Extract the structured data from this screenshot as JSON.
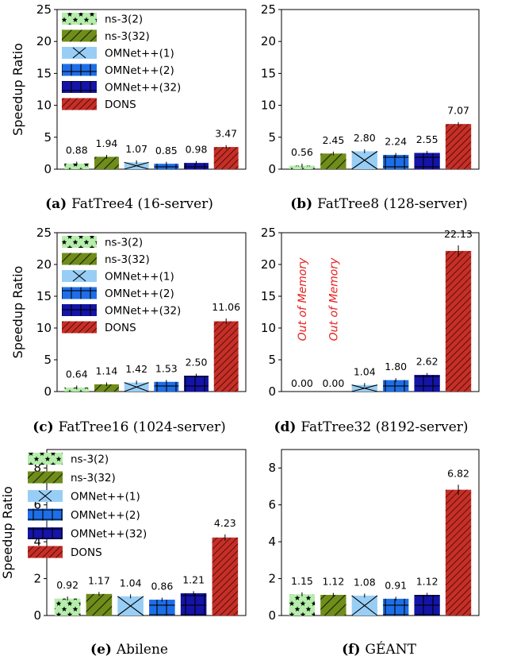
{
  "legend": [
    "ns-3(2)",
    "ns-3(32)",
    "OMNet++(1)",
    "OMNet++(2)",
    "OMNet++(32)",
    "DONS"
  ],
  "colors": {
    "ns3_2": "#b5eeab",
    "ns3_32": "#6f8d1a",
    "omnet_1": "#98cef5",
    "omnet_2": "#1e6ee8",
    "omnet_32": "#1414a8",
    "dons": "#c62f27"
  },
  "chart_data": [
    {
      "type": "bar",
      "caption_label": "(a)",
      "caption_text": "FatTree4 (16-server)",
      "ylabel": "Speedup Ratio",
      "ylim": [
        0,
        25
      ],
      "yticks": [
        0,
        5,
        10,
        15,
        20,
        25
      ],
      "categories": [
        "ns-3(2)",
        "ns-3(32)",
        "OMNet++(1)",
        "OMNet++(2)",
        "OMNet++(32)",
        "DONS"
      ],
      "values": [
        0.88,
        1.94,
        1.07,
        0.85,
        0.98,
        3.47
      ],
      "value_labels": [
        "0.88",
        "1.94",
        "1.07",
        "0.85",
        "0.98",
        "3.47"
      ],
      "legend": "top-left"
    },
    {
      "type": "bar",
      "caption_label": "(b)",
      "caption_text": "FatTree8 (128-server)",
      "ylabel": "",
      "ylim": [
        0,
        25
      ],
      "yticks": [
        0,
        5,
        10,
        15,
        20,
        25
      ],
      "categories": [
        "ns-3(2)",
        "ns-3(32)",
        "OMNet++(1)",
        "OMNet++(2)",
        "OMNet++(32)",
        "DONS"
      ],
      "values": [
        0.56,
        2.45,
        2.8,
        2.24,
        2.55,
        7.07
      ],
      "value_labels": [
        "0.56",
        "2.45",
        "2.80",
        "2.24",
        "2.55",
        "7.07"
      ]
    },
    {
      "type": "bar",
      "caption_label": "(c)",
      "caption_text": "FatTree16 (1024-server)",
      "ylabel": "Speedup Ratio",
      "ylim": [
        0,
        25
      ],
      "yticks": [
        0,
        5,
        10,
        15,
        20,
        25
      ],
      "categories": [
        "ns-3(2)",
        "ns-3(32)",
        "OMNet++(1)",
        "OMNet++(2)",
        "OMNet++(32)",
        "DONS"
      ],
      "values": [
        0.64,
        1.14,
        1.42,
        1.53,
        2.5,
        11.06
      ],
      "value_labels": [
        "0.64",
        "1.14",
        "1.42",
        "1.53",
        "2.50",
        "11.06"
      ],
      "legend": "top-left"
    },
    {
      "type": "bar",
      "caption_label": "(d)",
      "caption_text": "FatTree32 (8192-server)",
      "ylabel": "",
      "ylim": [
        0,
        25
      ],
      "yticks": [
        0,
        5,
        10,
        15,
        20,
        25
      ],
      "categories": [
        "ns-3(2)",
        "ns-3(32)",
        "OMNet++(1)",
        "OMNet++(2)",
        "OMNet++(32)",
        "DONS"
      ],
      "values": [
        0.0,
        0.0,
        1.04,
        1.8,
        2.62,
        22.13
      ],
      "value_labels": [
        "0.00",
        "0.00",
        "1.04",
        "1.80",
        "2.62",
        "22.13"
      ],
      "annotations": [
        "Out of Memory",
        "Out of Memory"
      ]
    },
    {
      "type": "bar",
      "caption_label": "(e)",
      "caption_text": "Abilene",
      "ylabel": "Speedup Ratio",
      "ylim": [
        0,
        9
      ],
      "yticks": [
        0,
        2,
        4,
        6,
        8
      ],
      "categories": [
        "ns-3(2)",
        "ns-3(32)",
        "OMNet++(1)",
        "OMNet++(2)",
        "OMNet++(32)",
        "DONS"
      ],
      "values": [
        0.92,
        1.17,
        1.04,
        0.86,
        1.21,
        4.23
      ],
      "value_labels": [
        "0.92",
        "1.17",
        "1.04",
        "0.86",
        "1.21",
        "4.23"
      ],
      "legend": "top-left"
    },
    {
      "type": "bar",
      "caption_label": "(f)",
      "caption_text": "GÉANT",
      "ylabel": "",
      "ylim": [
        0,
        9
      ],
      "yticks": [
        0,
        2,
        4,
        6,
        8
      ],
      "categories": [
        "ns-3(2)",
        "ns-3(32)",
        "OMNet++(1)",
        "OMNet++(2)",
        "OMNet++(32)",
        "DONS"
      ],
      "values": [
        1.15,
        1.12,
        1.08,
        0.91,
        1.12,
        6.82
      ],
      "value_labels": [
        "1.15",
        "1.12",
        "1.08",
        "0.91",
        "1.12",
        "6.82"
      ]
    }
  ]
}
